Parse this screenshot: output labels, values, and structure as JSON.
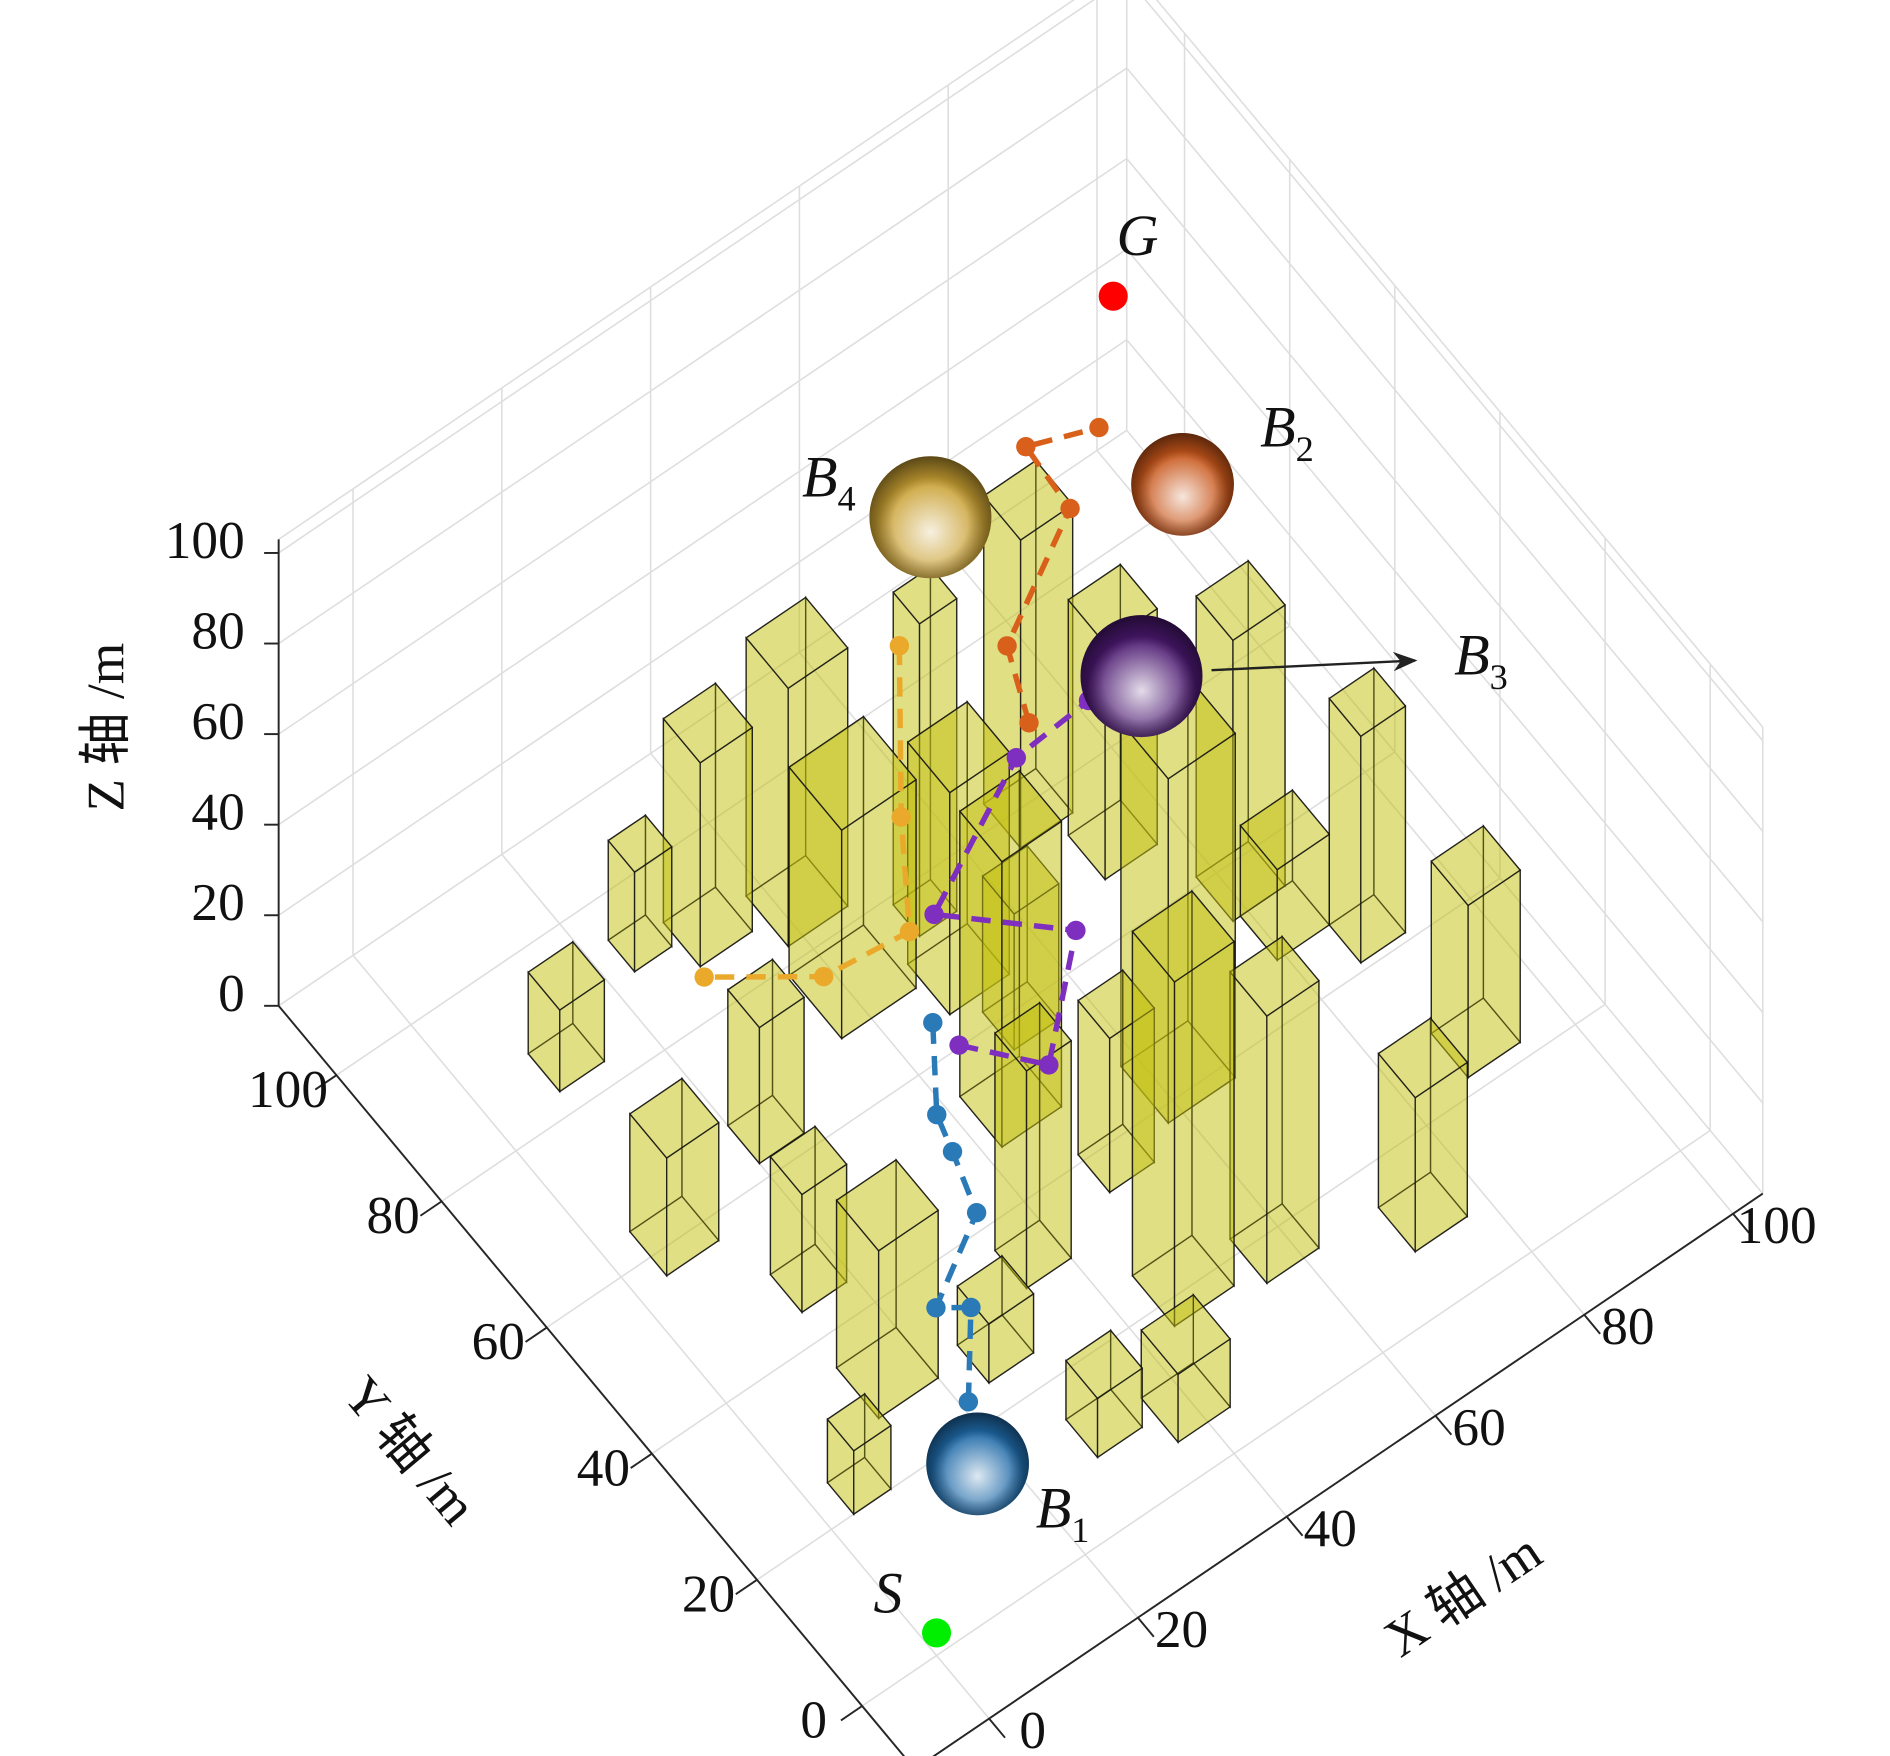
{
  "chart_data": {
    "type": "scene3d",
    "xlabel": "X 轴 /m",
    "ylabel": "Y 轴 /m",
    "zlabel": "Z 轴 /m",
    "xlim": [
      -10,
      104
    ],
    "ylim": [
      -10,
      111
    ],
    "zlim": [
      0,
      103
    ],
    "xticks": [
      0,
      20,
      40,
      60,
      80,
      100
    ],
    "yticks": [
      0,
      20,
      40,
      60,
      80,
      100
    ],
    "zticks": [
      0,
      20,
      40,
      60,
      80,
      100
    ],
    "grid": true,
    "building_color": "#c2bf10",
    "buildings": [
      {
        "x": 8,
        "y": 83,
        "w": 6,
        "d": 6,
        "h": 18
      },
      {
        "x": 23,
        "y": 90,
        "w": 5,
        "d": 5,
        "h": 22
      },
      {
        "x": 29,
        "y": 86,
        "w": 7,
        "d": 7,
        "h": 45
      },
      {
        "x": 38,
        "y": 82,
        "w": 8,
        "d": 8,
        "h": 57
      },
      {
        "x": 4,
        "y": 57,
        "w": 7,
        "d": 7,
        "h": 26
      },
      {
        "x": 20,
        "y": 62,
        "w": 6,
        "d": 6,
        "h": 30
      },
      {
        "x": 13,
        "y": 44,
        "w": 6,
        "d": 6,
        "h": 26
      },
      {
        "x": 12,
        "y": 28,
        "w": 8,
        "d": 8,
        "h": 37
      },
      {
        "x": 3,
        "y": 20,
        "w": 5,
        "d": 5,
        "h": 14
      },
      {
        "x": 36,
        "y": 69,
        "w": 10,
        "d": 10,
        "h": 46
      },
      {
        "x": 24,
        "y": 24,
        "w": 6,
        "d": 6,
        "h": 13
      },
      {
        "x": 28,
        "y": 9,
        "w": 6,
        "d": 6,
        "h": 13
      },
      {
        "x": 36,
        "y": 5,
        "w": 7,
        "d": 7,
        "h": 15
      },
      {
        "x": 34,
        "y": 31,
        "w": 6,
        "d": 6,
        "h": 48
      },
      {
        "x": 42,
        "y": 47,
        "w": 8,
        "d": 8,
        "h": 63
      },
      {
        "x": 44,
        "y": 17,
        "w": 8,
        "d": 8,
        "h": 76
      },
      {
        "x": 55,
        "y": 15,
        "w": 7,
        "d": 7,
        "h": 59
      },
      {
        "x": 48,
        "y": 35,
        "w": 6,
        "d": 6,
        "h": 34
      },
      {
        "x": 70,
        "y": 8,
        "w": 7,
        "d": 7,
        "h": 34
      },
      {
        "x": 87,
        "y": 22,
        "w": 7,
        "d": 7,
        "h": 38
      },
      {
        "x": 86,
        "y": 41,
        "w": 6,
        "d": 6,
        "h": 50
      },
      {
        "x": 58,
        "y": 38,
        "w": 9,
        "d": 9,
        "h": 76
      },
      {
        "x": 50,
        "y": 74,
        "w": 5,
        "d": 5,
        "h": 69
      },
      {
        "x": 65,
        "y": 76,
        "w": 7,
        "d": 7,
        "h": 68
      },
      {
        "x": 78,
        "y": 54,
        "w": 7,
        "d": 7,
        "h": 62
      },
      {
        "x": 47,
        "y": 64,
        "w": 8,
        "d": 8,
        "h": 49
      },
      {
        "x": 70,
        "y": 67,
        "w": 7,
        "d": 7,
        "h": 52
      },
      {
        "x": 79,
        "y": 47,
        "w": 7,
        "d": 7,
        "h": 20
      },
      {
        "x": 50,
        "y": 56,
        "w": 6,
        "d": 6,
        "h": 30
      }
    ],
    "series": [
      {
        "color": "#2a7ab8",
        "x": [
          17,
          23,
          19,
          28,
          29,
          29,
          32
        ],
        "y": [
          18,
          26,
          27,
          32,
          38,
          41,
          46
        ],
        "z": [
          12,
          15,
          18,
          22,
          26,
          30,
          40
        ]
      },
      {
        "color": "#7e2fc0",
        "x": [
          32,
          37,
          47,
          35,
          51,
          60
        ],
        "y": [
          41,
          31,
          40,
          50,
          57,
          56
        ],
        "z": [
          42,
          46,
          52,
          55,
          62,
          66
        ]
      },
      {
        "color": "#d9601a",
        "x": [
          52,
          54,
          66,
          65,
          72
        ],
        "y": [
          56,
          63,
          68,
          75,
          71
        ],
        "z": [
          70,
          75,
          85,
          90,
          92
        ]
      },
      {
        "color": "#eaa92a",
        "x": [
          48,
          44,
          43,
          35,
          26
        ],
        "y": [
          75,
          69,
          66,
          71,
          81
        ],
        "z": [
          65,
          40,
          20,
          12,
          8
        ]
      }
    ],
    "points": [
      {
        "label": "S",
        "x": 0,
        "y": 0,
        "z": 5,
        "color": "#00ee00"
      },
      {
        "label": "G",
        "x": 93,
        "y": 98,
        "z": 60,
        "color": "#ff0000"
      }
    ],
    "spheres": [
      {
        "label": "B",
        "sub": "1",
        "x": 14,
        "y": 12,
        "z": 10,
        "r": 8,
        "color": "#1f6aa8"
      },
      {
        "label": "B",
        "sub": "2",
        "x": 79,
        "y": 65,
        "z": 80,
        "r": 8,
        "color": "#c8561a"
      },
      {
        "label": "B",
        "sub": "3",
        "x": 65,
        "y": 53,
        "z": 70,
        "r": 9.5,
        "color": "#4b1870"
      },
      {
        "label": "B",
        "sub": "4",
        "x": 55,
        "y": 79,
        "z": 80,
        "r": 9.5,
        "color": "#c9a032"
      }
    ]
  }
}
